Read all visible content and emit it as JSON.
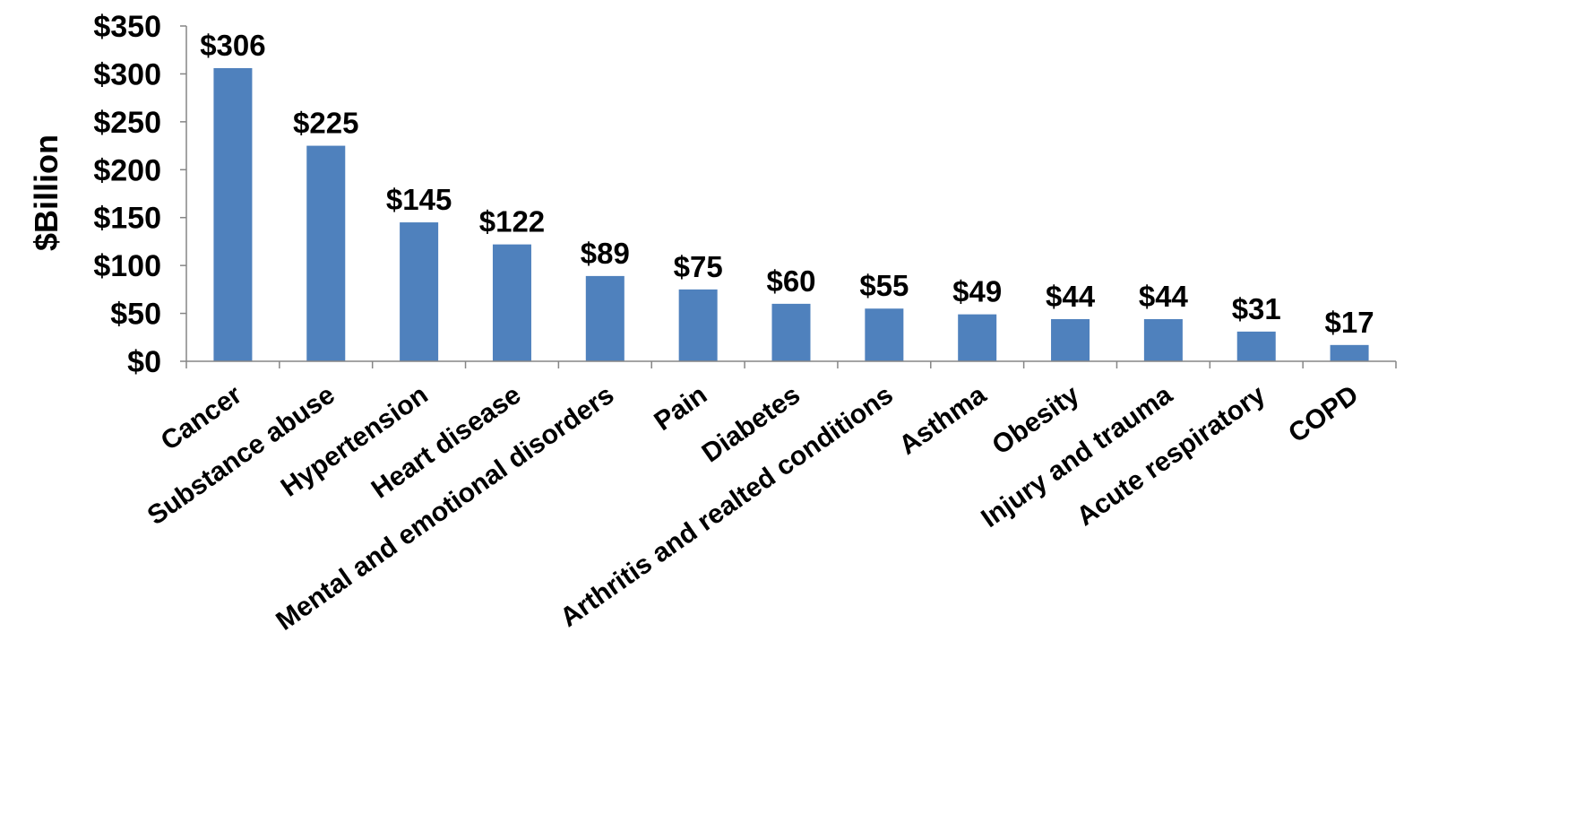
{
  "chart_data": {
    "type": "bar",
    "title": "",
    "xlabel": "",
    "ylabel": "$Billion",
    "ylim": [
      0,
      350
    ],
    "yticks": [
      0,
      50,
      100,
      150,
      200,
      250,
      300,
      350
    ],
    "ytick_labels": [
      "$0",
      "$50",
      "$100",
      "$150",
      "$200",
      "$250",
      "$300",
      "$350"
    ],
    "grid": false,
    "legend": "none",
    "bar_color": "#4F81BD",
    "categories": [
      "Cancer",
      "Substance abuse",
      "Hypertension",
      "Heart disease",
      "Mental and emotional disorders",
      "Pain",
      "Diabetes",
      "Arthritis and realted conditions",
      "Asthma",
      "Obesity",
      "Injury and trauma",
      "Acute respiratory",
      "COPD"
    ],
    "values": [
      306,
      225,
      145,
      122,
      89,
      75,
      60,
      55,
      49,
      44,
      44,
      31,
      17
    ],
    "data_labels": [
      "$306",
      "$225",
      "$145",
      "$122",
      "$89",
      "$75",
      "$60",
      "$55",
      "$49",
      "$44",
      "$44",
      "$31",
      "$17"
    ]
  }
}
